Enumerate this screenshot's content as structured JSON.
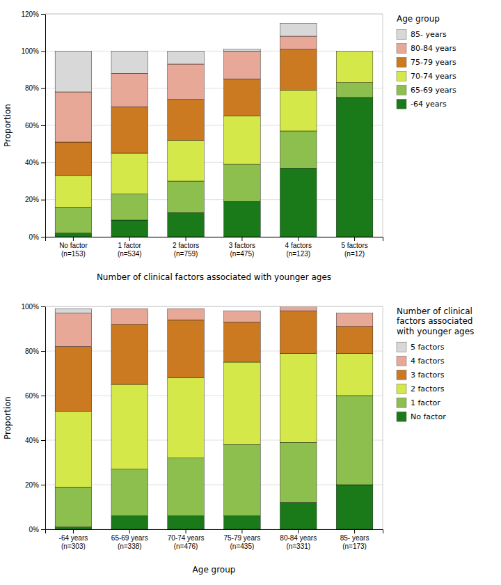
{
  "chart_data": [
    {
      "type": "bar",
      "stacked": true,
      "categories": [
        "No factor\n(n=153)",
        "1 factor\n(n=534)",
        "2 factors\n(n=759)",
        "3 factors\n(n=475)",
        "4 factors\n(n=123)",
        "5 factors\n(n=12)"
      ],
      "xlabel": "Number of clinical factors associated with younger ages",
      "ylabel": "Proportion",
      "legend_title": "Age group",
      "legend": "right",
      "grid": true,
      "ylim": [
        0,
        1.2
      ],
      "yticks": [
        {
          "value": 0,
          "label": "0%"
        },
        {
          "value": 0.2,
          "label": "20%"
        },
        {
          "value": 0.4,
          "label": "40%"
        },
        {
          "value": 0.6,
          "label": "60%"
        },
        {
          "value": 0.8,
          "label": "80%"
        },
        {
          "value": 1.0,
          "label": "100%"
        },
        {
          "value": 1.2,
          "label": "120%"
        }
      ],
      "series": [
        {
          "name": "-64 years",
          "color": "#1a7a1a",
          "values": [
            0.02,
            0.09,
            0.13,
            0.19,
            0.37,
            0.75
          ]
        },
        {
          "name": "65-69 years",
          "color": "#8dbf4e",
          "values": [
            0.14,
            0.14,
            0.17,
            0.2,
            0.2,
            0.08
          ]
        },
        {
          "name": "70-74 years",
          "color": "#d4e84a",
          "values": [
            0.17,
            0.22,
            0.22,
            0.26,
            0.22,
            0.17
          ]
        },
        {
          "name": "75-79 years",
          "color": "#cc7a22",
          "values": [
            0.18,
            0.25,
            0.22,
            0.2,
            0.22,
            0.0
          ]
        },
        {
          "name": "80-84 years",
          "color": "#e8a898",
          "values": [
            0.27,
            0.18,
            0.19,
            0.15,
            0.07,
            0.0
          ]
        },
        {
          "name": "85- years",
          "color": "#d8d8d8",
          "values": [
            0.22,
            0.12,
            0.07,
            0.01,
            0.07,
            0.0
          ]
        }
      ]
    },
    {
      "type": "bar",
      "stacked": true,
      "categories": [
        "-64 years\n(n=303)",
        "65-69 years\n(n=338)",
        "70-74 years\n(n=476)",
        "75-79 years\n(n=435)",
        "80-84 years\n(n=331)",
        "85- years\n(n=173)"
      ],
      "xlabel": "Age group",
      "ylabel": "Proportion",
      "legend_title": "Number of clinical\nfactors associated\nwith younger ages",
      "legend": "right",
      "grid": true,
      "ylim": [
        0,
        1.0
      ],
      "yticks": [
        {
          "value": 0,
          "label": "0%"
        },
        {
          "value": 0.2,
          "label": "20%"
        },
        {
          "value": 0.4,
          "label": "40%"
        },
        {
          "value": 0.6,
          "label": "60%"
        },
        {
          "value": 0.8,
          "label": "80%"
        },
        {
          "value": 1.0,
          "label": "100%"
        }
      ],
      "series": [
        {
          "name": "No factor",
          "color": "#1a7a1a",
          "values": [
            0.01,
            0.06,
            0.06,
            0.06,
            0.12,
            0.2
          ]
        },
        {
          "name": "1 factor",
          "color": "#8dbf4e",
          "values": [
            0.18,
            0.21,
            0.26,
            0.32,
            0.27,
            0.4
          ]
        },
        {
          "name": "2 factors",
          "color": "#d4e84a",
          "values": [
            0.34,
            0.38,
            0.36,
            0.37,
            0.4,
            0.19
          ]
        },
        {
          "name": "3 factors",
          "color": "#cc7a22",
          "values": [
            0.29,
            0.27,
            0.26,
            0.18,
            0.19,
            0.12
          ]
        },
        {
          "name": "4 factors",
          "color": "#e8a898",
          "values": [
            0.15,
            0.07,
            0.05,
            0.05,
            0.02,
            0.06
          ]
        },
        {
          "name": "5 factors",
          "color": "#d8d8d8",
          "values": [
            0.02,
            0.0,
            0.0,
            0.0,
            0.0,
            0.0
          ]
        }
      ]
    }
  ]
}
